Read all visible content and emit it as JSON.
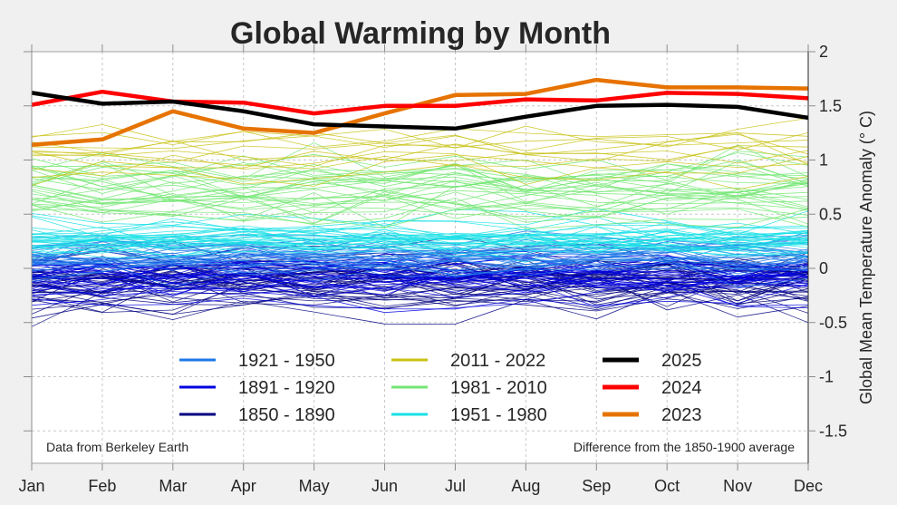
{
  "chart_data": {
    "type": "line",
    "title": "Global Warming by Month",
    "xlabel": "",
    "ylabel": "Global  Mean  Temperature  Anomaly  (°  C)",
    "categories": [
      "Jan",
      "Feb",
      "Mar",
      "Apr",
      "May",
      "Jun",
      "Jul",
      "Aug",
      "Sep",
      "Oct",
      "Nov",
      "Dec"
    ],
    "ylim": [
      -1.8,
      2.0
    ],
    "yticks": [
      2,
      1.5,
      1,
      0.5,
      0,
      -0.5,
      -1,
      -1.5
    ],
    "ytick_labels": [
      "2",
      "1.5",
      "1",
      "0.5",
      "0",
      "-0.5",
      "-1",
      "-1.5"
    ],
    "y_axis_side": "right",
    "grid": true,
    "legend_position": "bottom-center",
    "annotations": {
      "left": "Data from Berkeley Earth",
      "right": "Difference from the 1850-1900 average"
    },
    "series": [
      {
        "name": "2025",
        "color": "#000000",
        "emphasis": true,
        "values": [
          1.62,
          1.52,
          1.54,
          1.45,
          1.33,
          1.31,
          1.29,
          1.4,
          1.5,
          1.51,
          1.49,
          1.39
        ]
      },
      {
        "name": "2024",
        "color": "#ff0000",
        "emphasis": true,
        "values": [
          1.51,
          1.63,
          1.54,
          1.53,
          1.43,
          1.5,
          1.5,
          1.56,
          1.55,
          1.62,
          1.61,
          1.57
        ]
      },
      {
        "name": "2023",
        "color": "#e67300",
        "emphasis": true,
        "values": [
          1.14,
          1.19,
          1.45,
          1.29,
          1.25,
          1.43,
          1.6,
          1.61,
          1.74,
          1.67,
          1.67,
          1.66
        ]
      }
    ],
    "period_groups": [
      {
        "name": "1850 - 1890",
        "color": "#000080",
        "years": 41,
        "mean": -0.12,
        "spread": 0.16
      },
      {
        "name": "1891 - 1920",
        "color": "#0000e0",
        "years": 30,
        "mean": -0.08,
        "spread": 0.14
      },
      {
        "name": "1921 - 1950",
        "color": "#1e78e6",
        "years": 30,
        "mean": 0.12,
        "spread": 0.12
      },
      {
        "name": "1951 - 1980",
        "color": "#19e0e6",
        "years": 30,
        "mean": 0.28,
        "spread": 0.1
      },
      {
        "name": "1981 - 2010",
        "color": "#73e673",
        "years": 30,
        "mean": 0.72,
        "spread": 0.17
      },
      {
        "name": "2011 - 2022",
        "color": "#c8c214",
        "years": 12,
        "mean": 1.08,
        "spread": 0.14
      }
    ],
    "legend": [
      {
        "label": "1921 - 1950",
        "color": "#1e78e6"
      },
      {
        "label": "1891 - 1920",
        "color": "#0000e0"
      },
      {
        "label": "1850 - 1890",
        "color": "#000080"
      },
      {
        "label": "2011 - 2022",
        "color": "#c8c214"
      },
      {
        "label": "1981 - 2010",
        "color": "#73e673"
      },
      {
        "label": "1951 - 1980",
        "color": "#19e0e6"
      },
      {
        "label": "2025",
        "color": "#000000",
        "thick": true
      },
      {
        "label": "2024",
        "color": "#ff0000",
        "thick": true
      },
      {
        "label": "2023",
        "color": "#e67300",
        "thick": true
      }
    ]
  }
}
